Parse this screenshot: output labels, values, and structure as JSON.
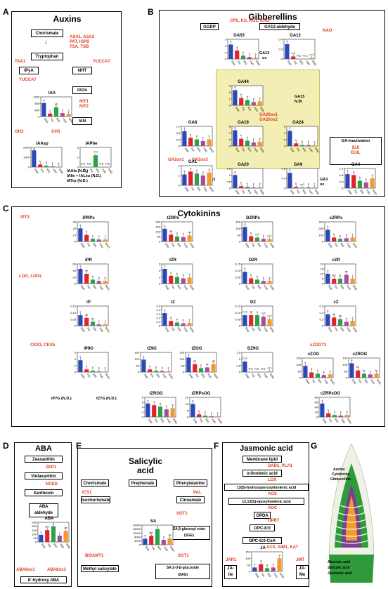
{
  "colors": {
    "sam": "#2b48b8",
    "yin": "#e3232b",
    "min": "#2aa14b",
    "yno": "#a64d9e",
    "mno": "#f39a2c",
    "enzyme": "#e03c1f",
    "highlight": "#f3efb4"
  },
  "sample_labels": [
    "SAM",
    "YIN",
    "MIN",
    "YNO",
    "MNO"
  ],
  "auxins": {
    "label": "A",
    "title": "Auxins",
    "nodes": {
      "chorismate": "Chorismate",
      "tryptophan": "Tryptophan",
      "ipya": "IPyA",
      "nht": "NHT",
      "iaox": "IAOx",
      "ian": "IAN"
    },
    "enzymes": {
      "asa": "ASA1, ASA2",
      "pat": "PAT, IGPS",
      "tsa": "TSA, TSB",
      "taa1": "TAA1",
      "yuc_r": "YUCCA7",
      "yuc_l": "YUCCA7",
      "nit": "NIT1\nNIT2",
      "gh3_a": "GH3",
      "gh3_b": "GH3"
    },
    "notes": {
      "iap7": "IAAla (N.D.)",
      "ile": "IAIle + IALeu (N.D.)",
      "trp": "IATrp (N.D.)"
    }
  },
  "gibberellins": {
    "label": "B",
    "title": "Gibberellins",
    "nodes": {
      "ggdp": "GGDP",
      "ga12ald": "GA12-aldehyde"
    },
    "enzymes": {
      "cps": "CPS, KS, KO2, KAO",
      "kao": "KAO",
      "ga20ox": "GA20ox1\nGA20ox2",
      "ga2ox": "GA2ox1",
      "ga3ox": "GA2ox3",
      "eui": "EUI\nEUIL"
    },
    "notes": {
      "ga13": "GA13\nox",
      "ga15": "GA15\nN.M.",
      "ga3": "GA3\nox",
      "inact": "GA-inactivation",
      "ga3left": "GA3\nox"
    }
  },
  "cytokinins": {
    "label": "C",
    "title": "Cytokinins",
    "enzymes": {
      "ipt": "IPT3",
      "log": "LOG, LOGL",
      "ckx": "CKX3, CKX5",
      "czog": "cZOGT3"
    },
    "notes": {
      "ip7g": "iP7G (N.D.)",
      "tz7g": "tZ7G (N.D.)"
    }
  },
  "aba": {
    "label": "D",
    "title": "ABA",
    "nodes": {
      "zea": "Zeaxanthin",
      "vio": "Violaxanthin",
      "xan": "Xanthoxin",
      "abaald": "ABA\naldehyde",
      "hydroxy": "8'-hydroxy ABA"
    },
    "enzymes": {
      "zep": "ZEP1",
      "nced": "NCED",
      "abaox1": "ABA8ox1",
      "abaox3": "ABA8ox3"
    }
  },
  "salicylic": {
    "label": "E",
    "title": "Salicylic\nacid",
    "nodes": {
      "chor": "Chorismate",
      "prep": "Prephenate",
      "phe": "Phenylalanine",
      "iso": "Isochorismate",
      "cinn": "Cinnamate",
      "sge": "SA β-glucosyl ester\n(SGE)",
      "msa": "Methyl salicylate",
      "sag": "SA 2-O-β-glucoside\n(SAG)"
    },
    "enzymes": {
      "ics": "ICS1",
      "pal": "PAL",
      "sgt1a": "SGT1",
      "sgt1b": "SGT1",
      "bsmt": "BISAMT1"
    }
  },
  "jasmonic": {
    "label": "F",
    "title": "Jasmonic acid",
    "nodes": {
      "membrane": "Membrane lipid",
      "linolenic": "α-linolenic acid",
      "hpot": "13(S)-hydroxyperoxylinolenic acid",
      "epox": "12,13(S)-epoxylinolenic acid",
      "opda": "OPDA",
      "opc": "OPC-8:0",
      "opccoa": "OPC-8:0-CoA",
      "jaile": "JA-\nIle",
      "jame": "JA-\nMe"
    },
    "enzymes": {
      "dad": "DAD1, PLA1",
      "lox": "LOX",
      "aos": "AOS",
      "aoc": "AOC",
      "opr": "OPR7",
      "acx": "ACX, AIM1, KAT",
      "jar": "JAR1",
      "jmt": "JMT"
    }
  },
  "gpanel": {
    "label": "G",
    "top_labels": [
      "Auxins",
      "Cytokinins",
      "Gibberellins"
    ],
    "bottom_labels": [
      "Abscisic acid",
      "Salicylic acid",
      "Jasmonic acid"
    ]
  },
  "charts": [
    {
      "id": "iaa",
      "title": "IAA",
      "type": "bar",
      "ylim": [
        0,
        1200
      ],
      "yticks": [
        "1200",
        "800",
        "400",
        "0"
      ],
      "values": [
        820,
        180,
        560,
        210,
        170
      ],
      "letters": [
        "a",
        "c",
        "ab",
        "c",
        "c"
      ]
    },
    {
      "id": "iaasp",
      "title": "IAAsp",
      "type": "bar",
      "ylim": [
        0,
        2000
      ],
      "yticks": [
        "2000",
        "1000",
        "0"
      ],
      "values": [
        1700,
        260,
        140,
        70,
        50
      ],
      "letters": [
        "a",
        "b",
        "b",
        "b",
        "b"
      ]
    },
    {
      "id": "iaphe",
      "title": "IAPhe",
      "type": "bar",
      "ylim": [
        0,
        2
      ],
      "yticks": [
        "2",
        "1",
        "0"
      ],
      "values": [
        0,
        0,
        1.2,
        0,
        0
      ],
      "letters": [
        "N.D.",
        "N.D.",
        "n=2",
        "N.D.",
        "N.D."
      ]
    },
    {
      "id": "ga53",
      "title": "GA53",
      "type": "bar",
      "ylim": [
        0,
        3
      ],
      "yticks": [
        "3",
        "2",
        "1",
        "0"
      ],
      "values": [
        2.2,
        1.3,
        0.5,
        0.3,
        0.2
      ],
      "letters": [
        "a",
        "a",
        "b",
        "b",
        "b"
      ]
    },
    {
      "id": "ga12",
      "title": "GA12",
      "type": "bar",
      "ylim": [
        0,
        0.4
      ],
      "yticks": [
        "0.4",
        "0.2",
        "0"
      ],
      "values": [
        0.3,
        0.05,
        0,
        0,
        0.02
      ],
      "letters": [
        "a",
        "n=3",
        "N.D.",
        "N.D.",
        "n=3"
      ]
    },
    {
      "id": "ga44",
      "title": "GA44",
      "type": "bar",
      "ylim": [
        0,
        3
      ],
      "yticks": [
        "3",
        "2",
        "1",
        "0"
      ],
      "values": [
        2.3,
        1.1,
        0.8,
        0.5,
        0.6
      ],
      "letters": [
        "a",
        "b",
        "b",
        "b",
        "b"
      ]
    },
    {
      "id": "ga19",
      "title": "GA19",
      "type": "bar",
      "ylim": [
        0,
        6
      ],
      "yticks": [
        "6",
        "4",
        "2",
        "0"
      ],
      "values": [
        4.8,
        2.2,
        1.6,
        1.1,
        1.3
      ],
      "letters": [
        "a",
        "b",
        "b",
        "b",
        "b"
      ]
    },
    {
      "id": "ga24",
      "title": "GA24",
      "type": "bar",
      "ylim": [
        0,
        6
      ],
      "yticks": [
        "6",
        "4",
        "2",
        "0"
      ],
      "values": [
        4.6,
        0.8,
        0.3,
        0.3,
        0.2
      ],
      "letters": [
        "a",
        "b",
        "b",
        "b",
        "b"
      ]
    },
    {
      "id": "ga8",
      "title": "GA8",
      "type": "bar",
      "ylim": [
        0,
        1.2
      ],
      "yticks": [
        "1.2",
        "0.8",
        "0.4",
        "0"
      ],
      "values": [
        0.9,
        0.5,
        0.4,
        0.3,
        0.4
      ],
      "letters": [
        "a",
        "b",
        "b",
        "b",
        "b"
      ]
    },
    {
      "id": "ga1",
      "title": "GA1",
      "type": "bar",
      "ylim": [
        0,
        2
      ],
      "yticks": [
        "2",
        "1",
        "0"
      ],
      "values": [
        1.1,
        1.4,
        1.2,
        1.0,
        1.3
      ],
      "letters": [
        "a",
        "a",
        "a",
        "a",
        "a"
      ]
    },
    {
      "id": "ga20",
      "title": "GA20",
      "type": "bar",
      "ylim": [
        0,
        1.5
      ],
      "yticks": [
        "1.5",
        "1",
        "0.5",
        "0"
      ],
      "values": [
        1.0,
        0.15,
        0.1,
        0.05,
        0.08
      ],
      "letters": [
        "a",
        "b",
        "b",
        "b",
        "b"
      ]
    },
    {
      "id": "ga9",
      "title": "GA9",
      "type": "bar",
      "ylim": [
        0,
        0.8
      ],
      "yticks": [
        "0.8",
        "0.4",
        "0"
      ],
      "values": [
        0.62,
        0.05,
        0.02,
        0.03,
        0.03
      ],
      "letters": [
        "a",
        "b",
        "n=3",
        "b",
        "b"
      ]
    },
    {
      "id": "ga4",
      "title": "GA4",
      "type": "bar",
      "ylim": [
        0,
        1.2
      ],
      "yticks": [
        "1.2",
        "0.8",
        "0.4",
        "0"
      ],
      "values": [
        0.85,
        0.8,
        0.45,
        0.35,
        0.6
      ],
      "letters": [
        "a",
        "a",
        "b",
        "b",
        "a"
      ]
    },
    {
      "id": "iprps",
      "title": "iPRPs",
      "type": "bar",
      "ylim": [
        0,
        30
      ],
      "yticks": [
        "30",
        "20",
        "10",
        "0"
      ],
      "values": [
        20,
        10,
        4,
        3,
        3
      ],
      "letters": [
        "a",
        "b",
        "c",
        "c",
        "c"
      ]
    },
    {
      "id": "ipr",
      "title": "iPR",
      "type": "bar",
      "ylim": [
        0,
        60
      ],
      "yticks": [
        "60",
        "40",
        "20",
        "0"
      ],
      "values": [
        45,
        30,
        12,
        8,
        8
      ],
      "letters": [
        "a",
        "ab",
        "b",
        "b",
        "b"
      ]
    },
    {
      "id": "ip",
      "title": "iP",
      "type": "bar",
      "ylim": [
        0,
        0.15
      ],
      "yticks": [
        "0.15",
        "0.10",
        "0.05",
        "0"
      ],
      "values": [
        0.08,
        0.06,
        0.03,
        0.01,
        0.01
      ],
      "letters": [
        "a",
        "ab",
        "bc",
        "c",
        "c"
      ]
    },
    {
      "id": "ip9g",
      "title": "iP9G",
      "type": "bar",
      "ylim": [
        0,
        3
      ],
      "yticks": [
        "3",
        "2",
        "1",
        "0"
      ],
      "values": [
        1.8,
        0.4,
        0.2,
        0.1,
        0.1
      ],
      "letters": [
        "a",
        "b",
        "b",
        "b",
        "b"
      ]
    },
    {
      "id": "tzrps",
      "title": "tZRPs",
      "type": "bar",
      "ylim": [
        0,
        200
      ],
      "yticks": [
        "200",
        "150",
        "100",
        "50",
        "0"
      ],
      "values": [
        130,
        70,
        50,
        45,
        60
      ],
      "letters": [
        "a",
        "ab",
        "b",
        "b",
        "ab"
      ]
    },
    {
      "id": "tzr",
      "title": "tZR",
      "type": "bar",
      "ylim": [
        0,
        6
      ],
      "yticks": [
        "6",
        "4",
        "2",
        "0"
      ],
      "values": [
        4.5,
        2.4,
        2.0,
        1.6,
        1.8
      ],
      "letters": [
        "a",
        "b",
        "b",
        "b",
        "b"
      ]
    },
    {
      "id": "tz",
      "title": "tZ",
      "type": "bar",
      "ylim": [
        0,
        0.5
      ],
      "yticks": [
        "0.5",
        "0.4",
        "0.3",
        "0.2",
        "0.1",
        "0"
      ],
      "values": [
        0.32,
        0.12,
        0.08,
        0.06,
        0.07
      ],
      "letters": [
        "a",
        "b",
        "b",
        "b",
        "b"
      ]
    },
    {
      "id": "tz9g",
      "title": "tZ9G",
      "type": "bar",
      "ylim": [
        0,
        150
      ],
      "yticks": [
        "150",
        "100",
        "50",
        "0"
      ],
      "values": [
        95,
        20,
        10,
        8,
        6
      ],
      "letters": [
        "a",
        "b",
        "b",
        "b",
        "b"
      ]
    },
    {
      "id": "tzog",
      "title": "tZOG",
      "type": "bar",
      "ylim": [
        0,
        150
      ],
      "yticks": [
        "150",
        "100",
        "50",
        "0"
      ],
      "values": [
        110,
        60,
        30,
        35,
        60
      ],
      "letters": [
        "a",
        "bc",
        "c",
        "bc",
        "ab"
      ]
    },
    {
      "id": "tzrog",
      "title": "tZROG",
      "type": "bar",
      "ylim": [
        0,
        8
      ],
      "yticks": [
        "8",
        "6",
        "4",
        "2",
        "0"
      ],
      "values": [
        5.5,
        4.8,
        4.2,
        3.1,
        3.6
      ],
      "letters": [
        "a",
        "a",
        "a",
        "a",
        "a"
      ]
    },
    {
      "id": "tzrpsog",
      "title": "tZRPsOG",
      "type": "bar",
      "ylim": [
        0,
        15
      ],
      "yticks": [
        "15",
        "10",
        "5",
        "0"
      ],
      "values": [
        10,
        2,
        1,
        0.5,
        0.5
      ],
      "letters": [
        "a",
        "b",
        "b",
        "b",
        "b"
      ]
    },
    {
      "id": "dzrps",
      "title": "DZRPs",
      "type": "bar",
      "ylim": [
        0,
        150
      ],
      "yticks": [
        "150",
        "100",
        "50",
        "0"
      ],
      "values": [
        110,
        40,
        30,
        20,
        18
      ],
      "letters": [
        "a",
        "b",
        "n=2",
        "b",
        "n=1"
      ]
    },
    {
      "id": "dzr",
      "title": "DZR",
      "type": "bar",
      "ylim": [
        0,
        0.15
      ],
      "yticks": [
        "0.15",
        "0.10",
        "0.05",
        "0"
      ],
      "values": [
        0.09,
        0.04,
        0.03,
        0.02,
        0.02
      ],
      "letters": [
        "a",
        "b",
        "b",
        "b",
        "b"
      ]
    },
    {
      "id": "dz",
      "title": "DZ",
      "type": "bar",
      "ylim": [
        0,
        0.15
      ],
      "yticks": [
        "0.15",
        "0.10",
        "0.05",
        "0"
      ],
      "values": [
        0.08,
        0.08,
        0.08,
        0.07,
        0.05
      ],
      "letters": [
        "n=3",
        "ab",
        "a",
        "n=2",
        "n=2"
      ]
    },
    {
      "id": "dz9g",
      "title": "DZ9G",
      "type": "bar",
      "ylim": [
        0,
        1.5
      ],
      "yticks": [
        "1.5",
        "1",
        "0.5",
        "0"
      ],
      "values": [
        0.8,
        0,
        0,
        0,
        0.05
      ],
      "letters": [
        "n=3",
        "N.D.",
        "N.D.",
        "N.D.",
        "n=1"
      ]
    },
    {
      "id": "czrps",
      "title": "cZRPs",
      "type": "bar",
      "ylim": [
        0,
        300
      ],
      "yticks": [
        "300",
        "200",
        "100",
        "0"
      ],
      "values": [
        180,
        60,
        40,
        50,
        60
      ],
      "letters": [
        "a",
        "b",
        "b",
        "b",
        "b"
      ]
    },
    {
      "id": "czr",
      "title": "cZR",
      "type": "bar",
      "ylim": [
        0,
        20
      ],
      "yticks": [
        "20",
        "15",
        "10",
        "5",
        "0"
      ],
      "values": [
        10,
        5,
        5,
        9,
        5
      ],
      "letters": [
        "a",
        "abc",
        "bc",
        "ab",
        "c"
      ]
    },
    {
      "id": "cz",
      "title": "cZ",
      "type": "bar",
      "ylim": [
        0,
        0.6
      ],
      "yticks": [
        "0.6",
        "0.4",
        "0.2",
        "0"
      ],
      "values": [
        0.35,
        0.25,
        0.2,
        0.12,
        0.15
      ],
      "letters": [
        "a",
        "ab",
        "ab",
        "b",
        "b"
      ]
    },
    {
      "id": "czog",
      "title": "cZOG",
      "type": "bar",
      "ylim": [
        0,
        150
      ],
      "yticks": [
        "150",
        "100",
        "50",
        "0"
      ],
      "values": [
        90,
        40,
        30,
        20,
        25
      ],
      "letters": [
        "a",
        "b",
        "b",
        "b",
        "b"
      ]
    },
    {
      "id": "czrog",
      "title": "cZROG",
      "type": "bar",
      "ylim": [
        0,
        150
      ],
      "yticks": [
        "150",
        "100",
        "50",
        "0"
      ],
      "values": [
        110,
        55,
        30,
        25,
        30
      ],
      "letters": [
        "a",
        "bc",
        "bc",
        "c",
        "bc"
      ]
    },
    {
      "id": "czrpsog",
      "title": "cZRPsOG",
      "type": "bar",
      "ylim": [
        0,
        80
      ],
      "yticks": [
        "80",
        "60",
        "40",
        "20",
        "0"
      ],
      "values": [
        55,
        15,
        8,
        6,
        8
      ],
      "letters": [
        "a",
        "b",
        "b",
        "b",
        "b"
      ]
    },
    {
      "id": "aba",
      "title": "ABA",
      "type": "bar",
      "ylim": [
        0,
        250
      ],
      "yticks": [
        "250",
        "200",
        "150",
        "100",
        "50",
        "0"
      ],
      "values": [
        90,
        150,
        200,
        80,
        140
      ],
      "letters": [
        "c",
        "abc",
        "a",
        "c",
        "ab"
      ]
    },
    {
      "id": "sa",
      "title": "SA",
      "type": "bar",
      "ylim": [
        0,
        20000
      ],
      "yticks": [
        "20000",
        "16000",
        "12000",
        "8000",
        "4000",
        "0"
      ],
      "values": [
        6000,
        9000,
        16000,
        5000,
        6500
      ],
      "letters": [
        "a",
        "abc",
        "c",
        "a",
        "ab"
      ]
    },
    {
      "id": "ja",
      "title": "JA",
      "type": "bar",
      "ylim": [
        0,
        150
      ],
      "yticks": [
        "150",
        "100",
        "50",
        "0"
      ],
      "values": [
        30,
        55,
        25,
        30,
        100
      ],
      "letters": [
        "a",
        "a",
        "a",
        "a",
        "a"
      ]
    }
  ]
}
